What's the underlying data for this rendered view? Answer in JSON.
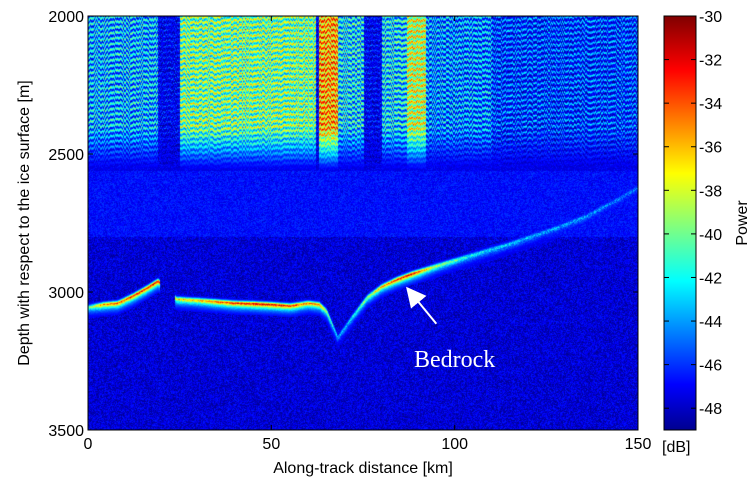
{
  "chart_data": {
    "type": "heatmap",
    "title": "",
    "xlabel": "Along-track distance [km]",
    "ylabel": "Depth with respect to the ice surface [m]",
    "xlim": [
      0,
      150
    ],
    "ylim": [
      3500,
      2000
    ],
    "x_ticks": [
      0,
      50,
      100,
      150
    ],
    "y_ticks": [
      2000,
      2500,
      3000,
      3500
    ],
    "y_reversed": true,
    "grid": false,
    "colorbar": {
      "label": "Power",
      "unit": "[dB]",
      "range": [
        -49,
        -30
      ],
      "ticks": [
        -30,
        -32,
        -34,
        -36,
        -38,
        -40,
        -42,
        -44,
        -46,
        -48
      ],
      "colormap": "jet"
    },
    "annotation": {
      "text": "Bedrock",
      "arrow_tip": [
        86,
        2965
      ],
      "arrow_tail": [
        95,
        3115
      ]
    },
    "bedrock_trace": [
      {
        "x": 0,
        "y": 3055
      },
      {
        "x": 4,
        "y": 3045
      },
      {
        "x": 8,
        "y": 3040
      },
      {
        "x": 12,
        "y": 3015
      },
      {
        "x": 16,
        "y": 2985
      },
      {
        "x": 19,
        "y": 2960
      },
      {
        "x": 24,
        "y": 3025
      },
      {
        "x": 30,
        "y": 3030
      },
      {
        "x": 35,
        "y": 3035
      },
      {
        "x": 40,
        "y": 3040
      },
      {
        "x": 45,
        "y": 3042
      },
      {
        "x": 50,
        "y": 3045
      },
      {
        "x": 55,
        "y": 3050
      },
      {
        "x": 60,
        "y": 3040
      },
      {
        "x": 63,
        "y": 3045
      },
      {
        "x": 65,
        "y": 3070
      },
      {
        "x": 68,
        "y": 3165
      },
      {
        "x": 72,
        "y": 3090
      },
      {
        "x": 76,
        "y": 3020
      },
      {
        "x": 80,
        "y": 2980
      },
      {
        "x": 84,
        "y": 2955
      },
      {
        "x": 88,
        "y": 2935
      },
      {
        "x": 95,
        "y": 2905
      },
      {
        "x": 105,
        "y": 2865
      },
      {
        "x": 115,
        "y": 2825
      },
      {
        "x": 125,
        "y": 2780
      },
      {
        "x": 135,
        "y": 2730
      },
      {
        "x": 145,
        "y": 2660
      },
      {
        "x": 150,
        "y": 2620
      }
    ],
    "bedrock_strength_db": [
      -40,
      -34,
      -33,
      -32,
      -31,
      -31,
      -36,
      -35,
      -33,
      -32,
      -31,
      -31,
      -32,
      -34,
      -34,
      -38,
      -44,
      -42,
      -38,
      -35,
      -32,
      -31,
      -38,
      -42,
      -43,
      -44,
      -44,
      -45,
      -45
    ],
    "layered_regions_km": [
      [
        0,
        19,
        -42
      ],
      [
        25,
        35,
        -38
      ],
      [
        35,
        62,
        -38
      ],
      [
        63,
        68,
        -33
      ],
      [
        68,
        75,
        -41
      ],
      [
        80,
        87,
        -41
      ],
      [
        87,
        92,
        -36
      ],
      [
        92,
        110,
        -43
      ],
      [
        110,
        150,
        -45
      ]
    ]
  }
}
